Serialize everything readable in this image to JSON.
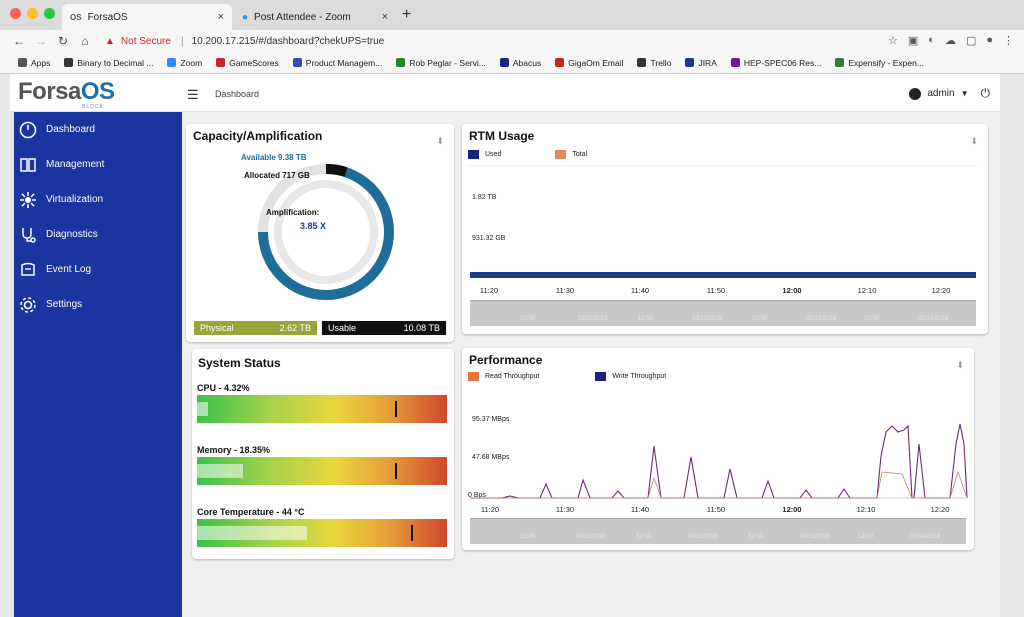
{
  "browser": {
    "tabs": [
      {
        "label": "ForsaOS",
        "icon": "OS"
      },
      {
        "label": "Post Attendee - Zoom",
        "icon": "zoom"
      }
    ],
    "address": {
      "security_label": "Not Secure",
      "url": "10.200.17.215/#/dashboard?chekUPS=true"
    },
    "bookmarks": [
      {
        "label": "Apps",
        "color": "#555555"
      },
      {
        "label": "Binary to Decimal ...",
        "color": "#333333"
      },
      {
        "label": "Zoom",
        "color": "#2d8cff"
      },
      {
        "label": "GameScores",
        "color": "#c62828"
      },
      {
        "label": "Product Managem...",
        "color": "#3a4bb0"
      },
      {
        "label": "Rob Peglar - Servi...",
        "color": "#2e7d32"
      },
      {
        "label": "Abacus",
        "color": "#1a237e"
      },
      {
        "label": "GigaOm Email",
        "color": "#c62828"
      },
      {
        "label": "Trello",
        "color": "#333333"
      },
      {
        "label": "JIRA",
        "color": "#1a3a8a"
      },
      {
        "label": "HEP-SPEC06 Res...",
        "color": "#6a1b9a"
      },
      {
        "label": "Expensify - Expen...",
        "color": "#2e7d32"
      }
    ]
  },
  "app": {
    "logo": {
      "prefix": "Forsa",
      "suffix": "OS",
      "sub": "BLOCK"
    },
    "breadcrumb": "Dashboard",
    "user": "admin"
  },
  "sidebar": {
    "items": [
      {
        "label": "Dashboard",
        "icon": "dashboard-icon"
      },
      {
        "label": "Management",
        "icon": "management-icon"
      },
      {
        "label": "Virtualization",
        "icon": "virtualization-icon"
      },
      {
        "label": "Diagnostics",
        "icon": "stethoscope-icon"
      },
      {
        "label": "Event Log",
        "icon": "event-log-icon"
      },
      {
        "label": "Settings",
        "icon": "gear-icon"
      }
    ]
  },
  "capacity": {
    "title": "Capacity/Amplification",
    "available_label": "Available 9.38 TB",
    "allocated_label": "Allocated 717 GB",
    "amplification_label": "Amplification:",
    "amplification_value": "3.85 X",
    "physical_label": "Physical",
    "physical_value": "2.62 TB",
    "usable_label": "Usable",
    "usable_value": "10.08 TB",
    "colors": {
      "available": "#1f6d99",
      "allocated": "#111111",
      "physical_bg": "#9aa43a",
      "usable_bg": "#111111"
    }
  },
  "rtm": {
    "title": "RTM Usage",
    "legend": [
      {
        "label": "Used",
        "color": "#1a237e"
      },
      {
        "label": "Total",
        "color": "#e08a5a"
      }
    ],
    "y_labels": [
      "1.82 TB",
      "931.32 GB"
    ],
    "x_ticks": [
      "11:20",
      "11:30",
      "11:40",
      "11:50",
      "12:00",
      "12:10",
      "12:20"
    ],
    "navigator_ticks": [
      "12:00",
      "03/11/2019",
      "12:00",
      "03/12/2019",
      "12:00",
      "03/13/2019",
      "12:00",
      "03/14/2019"
    ]
  },
  "system_status": {
    "title": "System Status",
    "metrics": [
      {
        "label": "CPU - 4.32%",
        "level": 0.0432
      },
      {
        "label": "Memory - 18.35%",
        "level": 0.1835
      },
      {
        "label": "Core Temperature - 44 °C",
        "level": 0.44
      }
    ]
  },
  "performance": {
    "title": "Performance",
    "legend": [
      {
        "label": "Read Throughput",
        "color": "#e0783a"
      },
      {
        "label": "Write Throughput",
        "color": "#1a237e"
      }
    ],
    "y_labels": [
      "95.37 MBps",
      "47.68 MBps",
      "0 Bps"
    ],
    "x_ticks": [
      "11:20",
      "11:30",
      "11:40",
      "11:50",
      "12:00",
      "12:10",
      "12:20"
    ],
    "navigator_ticks": [
      "12:00",
      "03/11/2019",
      "12:00",
      "03/12/2019",
      "12:00",
      "03/13/2019",
      "12:00",
      "03/14/2019"
    ]
  }
}
